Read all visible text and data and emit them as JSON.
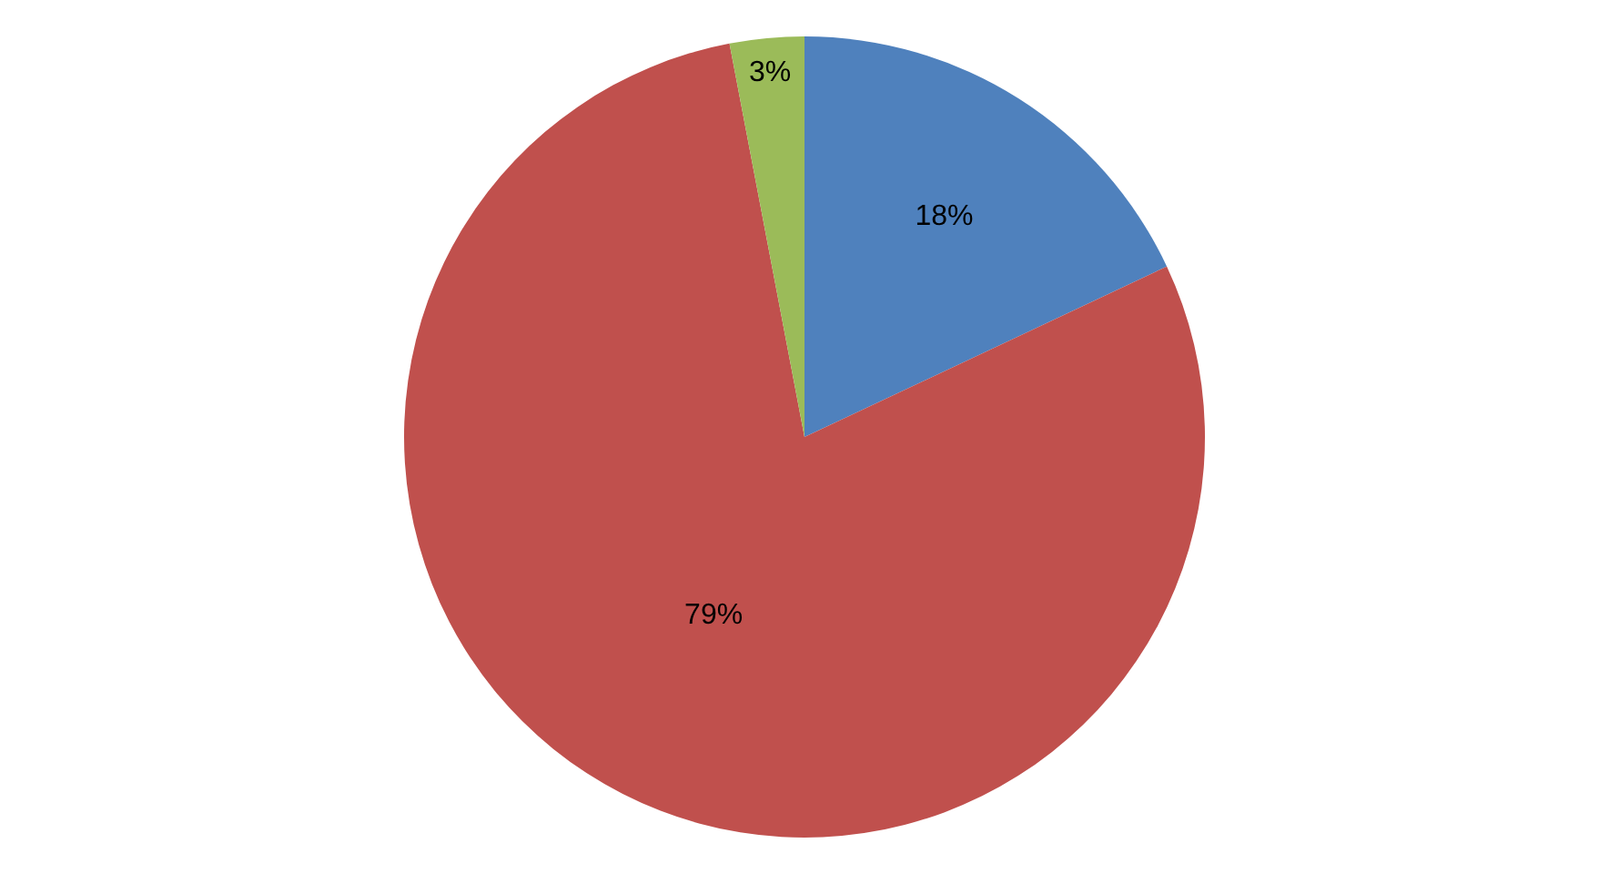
{
  "chart_data": {
    "type": "pie",
    "categories": [
      null,
      null,
      null
    ],
    "values": [
      18,
      79,
      3
    ],
    "colors": [
      "#4f81bd",
      "#c0504d",
      "#9bbb59"
    ],
    "value_labels": [
      "18%",
      "79%",
      "3%"
    ]
  }
}
